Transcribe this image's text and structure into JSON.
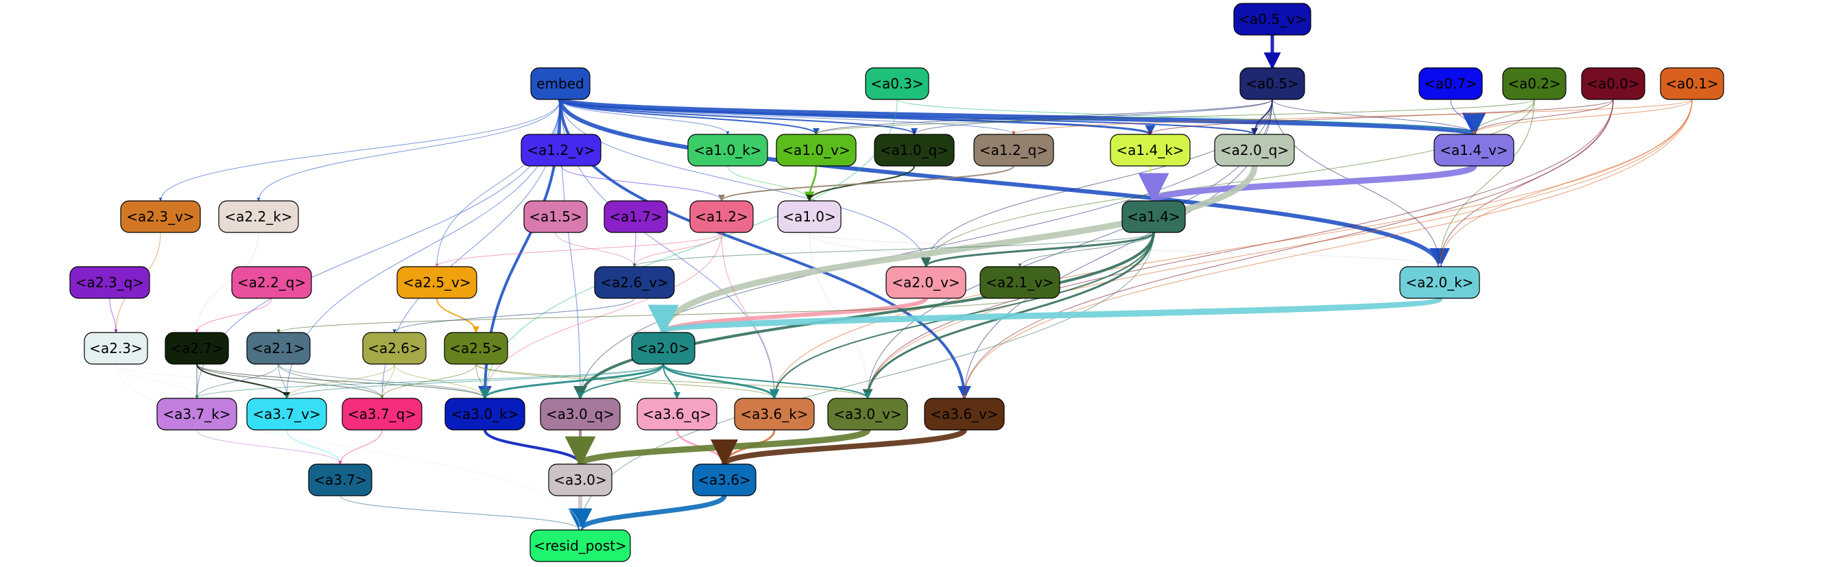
{
  "nodes": [
    {
      "id": "a0_5_v",
      "label": "<a0.5_v>",
      "fill": "#0b0fb0",
      "text": "#000000"
    },
    {
      "id": "embed",
      "label": "embed",
      "fill": "#2152c4",
      "text": "#000000"
    },
    {
      "id": "a0_3",
      "label": "<a0.3>",
      "fill": "#1ec07a",
      "text": "#000000"
    },
    {
      "id": "a0_5",
      "label": "<a0.5>",
      "fill": "#1e2870",
      "text": "#000000"
    },
    {
      "id": "a0_7",
      "label": "<a0.7>",
      "fill": "#0a0aee",
      "text": "#000000"
    },
    {
      "id": "a0_2",
      "label": "<a0.2>",
      "fill": "#437617",
      "text": "#000000"
    },
    {
      "id": "a0_0",
      "label": "<a0.0>",
      "fill": "#740c22",
      "text": "#000000"
    },
    {
      "id": "a0_1",
      "label": "<a0.1>",
      "fill": "#d9601d",
      "text": "#000000"
    },
    {
      "id": "a1_2_v",
      "label": "<a1.2_v>",
      "fill": "#4529ee",
      "text": "#000000"
    },
    {
      "id": "a1_0_k",
      "label": "<a1.0_k>",
      "fill": "#3ccd68",
      "text": "#000000"
    },
    {
      "id": "a1_0_v",
      "label": "<a1.0_v>",
      "fill": "#5bbd1c",
      "text": "#000000"
    },
    {
      "id": "a1_0_q",
      "label": "<a1.0_q>",
      "fill": "#1f3a10",
      "text": "#000000"
    },
    {
      "id": "a1_2_q",
      "label": "<a1.2_q>",
      "fill": "#93806d",
      "text": "#000000"
    },
    {
      "id": "a1_4_k",
      "label": "<a1.4_k>",
      "fill": "#d3f54a",
      "text": "#000000"
    },
    {
      "id": "a2_0_q",
      "label": "<a2.0_q>",
      "fill": "#b8c8b2",
      "text": "#000000"
    },
    {
      "id": "a1_4_v",
      "label": "<a1.4_v>",
      "fill": "#8477e4",
      "text": "#000000"
    },
    {
      "id": "a2_3_v",
      "label": "<a2.3_v>",
      "fill": "#d27824",
      "text": "#000000"
    },
    {
      "id": "a2_2_k",
      "label": "<a2.2_k>",
      "fill": "#e8dbd3",
      "text": "#000000"
    },
    {
      "id": "a1_5",
      "label": "<a1.5>",
      "fill": "#d97aae",
      "text": "#000000"
    },
    {
      "id": "a1_7",
      "label": "<a1.7>",
      "fill": "#8920c8",
      "text": "#000000"
    },
    {
      "id": "a1_2",
      "label": "<a1.2>",
      "fill": "#ed698c",
      "text": "#000000"
    },
    {
      "id": "a1_0",
      "label": "<a1.0>",
      "fill": "#e8d7ee",
      "text": "#000000"
    },
    {
      "id": "a1_4",
      "label": "<a1.4>",
      "fill": "#336f5c",
      "text": "#000000"
    },
    {
      "id": "a2_3_q",
      "label": "<a2.3_q>",
      "fill": "#8220ca",
      "text": "#000000"
    },
    {
      "id": "a2_2_q",
      "label": "<a2.2_q>",
      "fill": "#e94f9d",
      "text": "#000000"
    },
    {
      "id": "a2_5_v",
      "label": "<a2.5_v>",
      "fill": "#f0a10e",
      "text": "#000000"
    },
    {
      "id": "a2_6_v",
      "label": "<a2.6_v>",
      "fill": "#1b3a8a",
      "text": "#000000"
    },
    {
      "id": "a2_0_v",
      "label": "<a2.0_v>",
      "fill": "#f69aaa",
      "text": "#000000"
    },
    {
      "id": "a2_1_v",
      "label": "<a2.1_v>",
      "fill": "#3f631d",
      "text": "#000000"
    },
    {
      "id": "a2_0_k",
      "label": "<a2.0_k>",
      "fill": "#6ecfd9",
      "text": "#000000"
    },
    {
      "id": "a2_3",
      "label": "<a2.3>",
      "fill": "#e5f0f1",
      "text": "#000000"
    },
    {
      "id": "a2_7",
      "label": "<a2.7>",
      "fill": "#10210a",
      "text": "#000000"
    },
    {
      "id": "a2_1",
      "label": "<a2.1>",
      "fill": "#4d7185",
      "text": "#000000"
    },
    {
      "id": "a2_6",
      "label": "<a2.6>",
      "fill": "#a6a947",
      "text": "#000000"
    },
    {
      "id": "a2_5",
      "label": "<a2.5>",
      "fill": "#66821e",
      "text": "#000000"
    },
    {
      "id": "a2_0",
      "label": "<a2.0>",
      "fill": "#1f8883",
      "text": "#000000"
    },
    {
      "id": "a3_7_k",
      "label": "<a3.7_k>",
      "fill": "#c27fe0",
      "text": "#000000"
    },
    {
      "id": "a3_7_v",
      "label": "<a3.7_v>",
      "fill": "#36dff6",
      "text": "#000000"
    },
    {
      "id": "a3_7_q",
      "label": "<a3.7_q>",
      "fill": "#f42d7c",
      "text": "#000000"
    },
    {
      "id": "a3_0_k",
      "label": "<a3.0_k>",
      "fill": "#061cbc",
      "text": "#000000"
    },
    {
      "id": "a3_0_q",
      "label": "<a3.0_q>",
      "fill": "#a5789c",
      "text": "#000000"
    },
    {
      "id": "a3_6_q",
      "label": "<a3.6_q>",
      "fill": "#f6a3c3",
      "text": "#000000"
    },
    {
      "id": "a3_6_k",
      "label": "<a3.6_k>",
      "fill": "#d07a47",
      "text": "#000000"
    },
    {
      "id": "a3_0_v",
      "label": "<a3.0_v>",
      "fill": "#637b30",
      "text": "#000000"
    },
    {
      "id": "a3_6_v",
      "label": "<a3.6_v>",
      "fill": "#5d3013",
      "text": "#000000"
    },
    {
      "id": "a3_7",
      "label": "<a3.7>",
      "fill": "#14628a",
      "text": "#000000"
    },
    {
      "id": "a3_0",
      "label": "<a3.0>",
      "fill": "#cdc3c4",
      "text": "#000000"
    },
    {
      "id": "a3_6",
      "label": "<a3.6>",
      "fill": "#0b6cba",
      "text": "#000000"
    },
    {
      "id": "resid_post",
      "label": "<resid_post>",
      "fill": "#20f36e",
      "text": "#000000"
    }
  ],
  "edges": [
    {
      "from": "a0_5_v",
      "to": "a0_5",
      "color": "#0b0fb0",
      "width": 5
    },
    {
      "from": "embed",
      "to": "a1_4_v",
      "color": "#2152c4",
      "width": 7
    },
    {
      "from": "embed",
      "to": "a2_0_k",
      "color": "#2152c4",
      "width": 6
    },
    {
      "from": "embed",
      "to": "a3_6_v",
      "color": "#2152c4",
      "width": 4
    },
    {
      "from": "embed",
      "to": "a3_0_k",
      "color": "#2152c4",
      "width": 4
    },
    {
      "from": "embed",
      "to": "a1_4_k",
      "color": "#2152c4",
      "width": 3
    },
    {
      "from": "embed",
      "to": "a1_0_v",
      "color": "#2152c4",
      "width": 2
    },
    {
      "from": "embed",
      "to": "a1_0_q",
      "color": "#2152c4",
      "width": 2
    },
    {
      "from": "embed",
      "to": "a2_0_q",
      "color": "#2152c4",
      "width": 2
    },
    {
      "from": "embed",
      "to": "a1_2_q",
      "color": "#2152c4",
      "width": 1
    },
    {
      "from": "embed",
      "to": "a1_0_k",
      "color": "#2152c4",
      "width": 1
    },
    {
      "from": "embed",
      "to": "a2_3_v",
      "color": "#2152c4",
      "width": 1
    },
    {
      "from": "embed",
      "to": "a2_2_k",
      "color": "#2152c4",
      "width": 1
    },
    {
      "from": "embed",
      "to": "a2_5_v",
      "color": "#2152c4",
      "width": 1
    },
    {
      "from": "embed",
      "to": "a2_0_v",
      "color": "#2152c4",
      "width": 1
    },
    {
      "from": "embed",
      "to": "a3_7_k",
      "color": "#2152c4",
      "width": 1
    },
    {
      "from": "embed",
      "to": "a3_7_v",
      "color": "#2152c4",
      "width": 1
    },
    {
      "from": "embed",
      "to": "a3_7_q",
      "color": "#2152c4",
      "width": 1
    },
    {
      "from": "embed",
      "to": "a3_6_k",
      "color": "#2152c4",
      "width": 1
    },
    {
      "from": "embed",
      "to": "a3_0_q",
      "color": "#2152c4",
      "width": 1
    },
    {
      "from": "a0_3",
      "to": "a1_4_v",
      "color": "#1ec07a",
      "width": 1
    },
    {
      "from": "a0_3",
      "to": "a3_0_k",
      "color": "#1ec07a",
      "width": 1
    },
    {
      "from": "a0_5",
      "to": "a2_0_q",
      "color": "#1e2870",
      "width": 2
    },
    {
      "from": "a0_5",
      "to": "a1_4_v",
      "color": "#1e2870",
      "width": 1
    },
    {
      "from": "a0_5",
      "to": "a2_0_k",
      "color": "#1e2870",
      "width": 1
    },
    {
      "from": "a0_5",
      "to": "a1_0_v",
      "color": "#1e2870",
      "width": 1
    },
    {
      "from": "a0_5",
      "to": "a1_0_q",
      "color": "#1e2870",
      "width": 1
    },
    {
      "from": "a0_5",
      "to": "a2_0_v",
      "color": "#1e2870",
      "width": 1
    },
    {
      "from": "a0_5",
      "to": "a3_6_v",
      "color": "#1e2870",
      "width": 1
    },
    {
      "from": "a0_5",
      "to": "a3_0_v",
      "color": "#1e2870",
      "width": 1
    },
    {
      "from": "a0_5",
      "to": "a3_0_q",
      "color": "#1e2870",
      "width": 1
    },
    {
      "from": "a0_7",
      "to": "a1_4_v",
      "color": "#0a0aee",
      "width": 1
    },
    {
      "from": "a0_2",
      "to": "a1_4_v",
      "color": "#437617",
      "width": 1
    },
    {
      "from": "a0_2",
      "to": "a2_0_k",
      "color": "#437617",
      "width": 1
    },
    {
      "from": "a0_2",
      "to": "a2_0_v",
      "color": "#437617",
      "width": 1
    },
    {
      "from": "a0_2",
      "to": "a1_0_v",
      "color": "#437617",
      "width": 1
    },
    {
      "from": "a0_0",
      "to": "a1_4_v",
      "color": "#740c22",
      "width": 1
    },
    {
      "from": "a0_0",
      "to": "a1_4_k",
      "color": "#740c22",
      "width": 1
    },
    {
      "from": "a0_0",
      "to": "a2_0_k",
      "color": "#740c22",
      "width": 1
    },
    {
      "from": "a0_0",
      "to": "a3_6_v",
      "color": "#740c22",
      "width": 1
    },
    {
      "from": "a0_0",
      "to": "a3_0_v",
      "color": "#740c22",
      "width": 1
    },
    {
      "from": "a0_1",
      "to": "a1_4_v",
      "color": "#d9601d",
      "width": 1
    },
    {
      "from": "a0_1",
      "to": "a1_2_q",
      "color": "#d9601d",
      "width": 1
    },
    {
      "from": "a0_1",
      "to": "a2_0_k",
      "color": "#d9601d",
      "width": 1
    },
    {
      "from": "a0_1",
      "to": "a3_6_k",
      "color": "#d9601d",
      "width": 1
    },
    {
      "from": "a0_1",
      "to": "a3_6_v",
      "color": "#d9601d",
      "width": 1
    },
    {
      "from": "a0_1",
      "to": "a3_0_v",
      "color": "#d9601d",
      "width": 1
    },
    {
      "from": "a1_2_v",
      "to": "a1_2",
      "color": "#4529ee",
      "width": 1
    },
    {
      "from": "a1_0_k",
      "to": "a1_0",
      "color": "#3ccd68",
      "width": 1
    },
    {
      "from": "a1_0_v",
      "to": "a1_0",
      "color": "#5bbd1c",
      "width": 3
    },
    {
      "from": "a1_0_q",
      "to": "a1_0",
      "color": "#1f3a10",
      "width": 2
    },
    {
      "from": "a1_2_q",
      "to": "a1_2",
      "color": "#93806d",
      "width": 2
    },
    {
      "from": "a1_4_k",
      "to": "a1_4",
      "color": "#d3f54a",
      "width": 2
    },
    {
      "from": "a1_4_v",
      "to": "a1_4",
      "color": "#8477e4",
      "width": 9
    },
    {
      "from": "a2_0_q",
      "to": "a2_0",
      "color": "#b8c8b2",
      "width": 9
    },
    {
      "from": "a2_3_v",
      "to": "a2_3",
      "color": "#d27824",
      "width": 1
    },
    {
      "from": "a2_2_k",
      "to": "a2_7",
      "color": "#e8dbd3",
      "width": 1
    },
    {
      "from": "a1_5",
      "to": "a2_6_v",
      "color": "#d97aae",
      "width": 1
    },
    {
      "from": "a1_7",
      "to": "a2_6_v",
      "color": "#8920c8",
      "width": 1
    },
    {
      "from": "a1_2",
      "to": "a2_6_v",
      "color": "#ed698c",
      "width": 1
    },
    {
      "from": "a1_2",
      "to": "a2_5_v",
      "color": "#ed698c",
      "width": 1
    },
    {
      "from": "a1_2",
      "to": "a3_6_k",
      "color": "#ed698c",
      "width": 1
    },
    {
      "from": "a1_2",
      "to": "a3_0_k",
      "color": "#ed698c",
      "width": 1
    },
    {
      "from": "a1_0",
      "to": "a2_0_v",
      "color": "#e8d7ee",
      "width": 1
    },
    {
      "from": "a1_0",
      "to": "a2_0_k",
      "color": "#e8d7ee",
      "width": 1
    },
    {
      "from": "a1_0",
      "to": "a3_0_v",
      "color": "#e8d7ee",
      "width": 1
    },
    {
      "from": "a1_4",
      "to": "a2_0_v",
      "color": "#336f5c",
      "width": 3
    },
    {
      "from": "a1_4",
      "to": "a2_6_v",
      "color": "#336f5c",
      "width": 1
    },
    {
      "from": "a1_4",
      "to": "a2_1_v",
      "color": "#336f5c",
      "width": 1
    },
    {
      "from": "a1_4",
      "to": "a3_0_q",
      "color": "#336f5c",
      "width": 4
    },
    {
      "from": "a1_4",
      "to": "a3_0_v",
      "color": "#336f5c",
      "width": 3
    },
    {
      "from": "a1_4",
      "to": "a3_6_k",
      "color": "#336f5c",
      "width": 2
    },
    {
      "from": "a1_4",
      "to": "resid_post",
      "color": "#336f5c",
      "width": 1
    },
    {
      "from": "a2_3_q",
      "to": "a2_3",
      "color": "#8220ca",
      "width": 1
    },
    {
      "from": "a2_2_q",
      "to": "a2_7",
      "color": "#e94f9d",
      "width": 1
    },
    {
      "from": "a2_5_v",
      "to": "a2_5",
      "color": "#f0a10e",
      "width": 2
    },
    {
      "from": "a2_6_v",
      "to": "a2_6",
      "color": "#1b3a8a",
      "width": 1
    },
    {
      "from": "a2_0_v",
      "to": "a2_0",
      "color": "#f69aaa",
      "width": 6
    },
    {
      "from": "a2_1_v",
      "to": "a2_1",
      "color": "#3f631d",
      "width": 1
    },
    {
      "from": "a2_0_k",
      "to": "a2_0",
      "color": "#6ecfd9",
      "width": 9
    },
    {
      "from": "a2_3",
      "to": "a3_7_k",
      "color": "#e5f0f1",
      "width": 1
    },
    {
      "from": "a2_3",
      "to": "a3_7_q",
      "color": "#e5f0f1",
      "width": 1
    },
    {
      "from": "a2_7",
      "to": "a3_7_k",
      "color": "#10210a",
      "width": 1
    },
    {
      "from": "a2_7",
      "to": "a3_7_v",
      "color": "#10210a",
      "width": 2
    },
    {
      "from": "a2_7",
      "to": "a3_7_q",
      "color": "#10210a",
      "width": 1
    },
    {
      "from": "a2_7",
      "to": "a3_0_k",
      "color": "#10210a",
      "width": 1
    },
    {
      "from": "a2_1",
      "to": "a3_7_k",
      "color": "#4d7185",
      "width": 1
    },
    {
      "from": "a2_1",
      "to": "a3_7_v",
      "color": "#4d7185",
      "width": 1
    },
    {
      "from": "a2_1",
      "to": "a3_7_q",
      "color": "#4d7185",
      "width": 1
    },
    {
      "from": "a2_1",
      "to": "a3_0_k",
      "color": "#4d7185",
      "width": 1
    },
    {
      "from": "a2_6",
      "to": "a3_7_v",
      "color": "#a6a947",
      "width": 1
    },
    {
      "from": "a2_6",
      "to": "a3_7_q",
      "color": "#a6a947",
      "width": 1
    },
    {
      "from": "a2_6",
      "to": "a3_0_k",
      "color": "#a6a947",
      "width": 1
    },
    {
      "from": "a2_5",
      "to": "a3_7_q",
      "color": "#66821e",
      "width": 1
    },
    {
      "from": "a2_5",
      "to": "a3_0_k",
      "color": "#66821e",
      "width": 1
    },
    {
      "from": "a2_5",
      "to": "a3_0_v",
      "color": "#66821e",
      "width": 1
    },
    {
      "from": "a2_5",
      "to": "a3_6_k",
      "color": "#66821e",
      "width": 1
    },
    {
      "from": "a2_0",
      "to": "a3_0_k",
      "color": "#1f8883",
      "width": 3
    },
    {
      "from": "a2_0",
      "to": "a3_0_q",
      "color": "#1f8883",
      "width": 2
    },
    {
      "from": "a2_0",
      "to": "a3_6_q",
      "color": "#1f8883",
      "width": 2
    },
    {
      "from": "a2_0",
      "to": "a3_6_k",
      "color": "#1f8883",
      "width": 3
    },
    {
      "from": "a2_0",
      "to": "a3_0_v",
      "color": "#1f8883",
      "width": 2
    },
    {
      "from": "a2_0",
      "to": "a3_7_v",
      "color": "#1f8883",
      "width": 1
    },
    {
      "from": "a2_0",
      "to": "a3_7_k",
      "color": "#1f8883",
      "width": 1
    },
    {
      "from": "a3_7_k",
      "to": "a3_7",
      "color": "#c27fe0",
      "width": 1
    },
    {
      "from": "a3_7_v",
      "to": "a3_7",
      "color": "#36dff6",
      "width": 1
    },
    {
      "from": "a3_7_q",
      "to": "a3_7",
      "color": "#f42d7c",
      "width": 1
    },
    {
      "from": "a3_0_k",
      "to": "a3_0",
      "color": "#061cbc",
      "width": 4
    },
    {
      "from": "a3_0_q",
      "to": "a3_0",
      "color": "#a5789c",
      "width": 4
    },
    {
      "from": "a3_6_q",
      "to": "a3_6",
      "color": "#f6a3c3",
      "width": 3
    },
    {
      "from": "a3_6_k",
      "to": "a3_6",
      "color": "#d07a47",
      "width": 3
    },
    {
      "from": "a3_0_v",
      "to": "a3_0",
      "color": "#637b30",
      "width": 9
    },
    {
      "from": "a3_6_v",
      "to": "a3_6",
      "color": "#5d3013",
      "width": 8
    },
    {
      "from": "a3_7",
      "to": "resid_post",
      "color": "#14628a",
      "width": 1
    },
    {
      "from": "a3_0",
      "to": "resid_post",
      "color": "#cdc3c4",
      "width": 6
    },
    {
      "from": "a3_6",
      "to": "resid_post",
      "color": "#0b6cba",
      "width": 7
    },
    {
      "from": "a2_3",
      "to": "resid_post",
      "color": "#e5f0f1",
      "width": 1
    }
  ]
}
